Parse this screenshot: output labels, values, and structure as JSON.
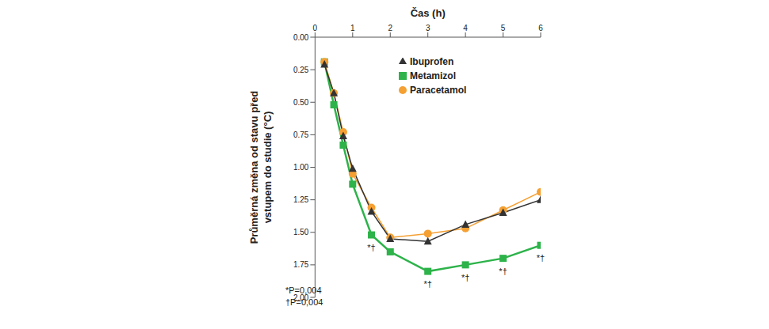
{
  "chart_data": {
    "type": "line",
    "x_label": "Čas (h)",
    "y_label": "Průměrná změna od stavu před vstupem do studie (°C)",
    "x": [
      0.25,
      0.5,
      0.75,
      1,
      1.5,
      2,
      3,
      4,
      5,
      6
    ],
    "series": [
      {
        "name": "Metamizol",
        "color": "#2db34a",
        "marker": "square",
        "values": [
          0.19,
          0.52,
          0.83,
          1.13,
          1.52,
          1.65,
          1.8,
          1.75,
          1.7,
          1.6
        ]
      },
      {
        "name": "Paracetamol",
        "color": "#f5a032",
        "marker": "circle",
        "values": [
          0.19,
          0.43,
          0.73,
          1.05,
          1.31,
          1.54,
          1.51,
          1.47,
          1.33,
          1.19
        ]
      },
      {
        "name": "Ibuprofen",
        "color": "#333333",
        "marker": "triangle",
        "values": [
          0.21,
          0.43,
          0.76,
          1.01,
          1.34,
          1.55,
          1.57,
          1.44,
          1.35,
          1.25
        ]
      }
    ],
    "xlim": [
      0,
      6
    ],
    "xticks": [
      0,
      1,
      2,
      3,
      4,
      5,
      6
    ],
    "ylim": [
      2,
      0
    ],
    "yticks": [
      {
        "value": 0,
        "label": "0.00"
      },
      {
        "value": 0.25,
        "label": "0.25"
      },
      {
        "value": 0.5,
        "label": "0.50"
      },
      {
        "value": 0.75,
        "label": "0.75"
      },
      {
        "value": 1,
        "label": "1.00"
      },
      {
        "value": 1.25,
        "label": "1.25"
      },
      {
        "value": 1.5,
        "label": "1.50"
      },
      {
        "value": 1.75,
        "label": "1.75"
      },
      {
        "value": 2,
        "label": "2.00"
      }
    ],
    "grid": false,
    "legend": "upper right",
    "annotations": [
      {
        "series": "Metamizol",
        "x": 1.5,
        "text": "*†"
      },
      {
        "series": "Metamizol",
        "x": 3,
        "text": "*†"
      },
      {
        "series": "Metamizol",
        "x": 4,
        "text": "*†"
      },
      {
        "series": "Metamizol",
        "x": 5,
        "text": "*†"
      },
      {
        "series": "Metamizol",
        "x": 6,
        "text": "*†"
      }
    ],
    "notes": [
      "*P=0,004",
      "†P=0,004"
    ]
  }
}
